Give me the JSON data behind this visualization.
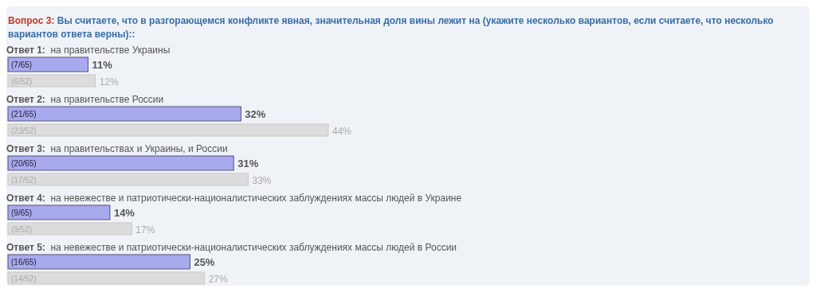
{
  "chart_data": {
    "type": "bar",
    "orientation": "horizontal",
    "title": "Вопрос 3:",
    "subtitle": "Вы считаете, что в разгорающемся конфликте явная, значительная доля вины лежит на (укажите несколько вариантов, если считаете, что несколько вариантов ответа верны)::",
    "categories": [
      "Ответ 1:  на правительстве Украины",
      "Ответ 2:  на правительстве России",
      "Ответ 3:  на правительствах и Украины, и России",
      "Ответ 4:  на невежестве и патриотически-националистических заблуждениях массы людей в Украине",
      "Ответ 5:  на невежестве и патриотически-националистических заблуждениях массы людей в России"
    ],
    "series": [
      {
        "color": "#a9a9ee",
        "values": [
          11,
          32,
          31,
          14,
          25
        ],
        "value_labels": [
          "11%",
          "32%",
          "31%",
          "14%",
          "25%"
        ]
      },
      {
        "color": "#dcdcdc",
        "values": [
          12,
          44,
          33,
          17,
          27
        ],
        "value_labels": [
          "12%",
          "44%",
          "33%",
          "17%",
          "27%"
        ]
      }
    ],
    "annotations": [
      "(7/65)",
      "(6/52)",
      "(21/65)",
      "(23/52)",
      "(20/65)",
      "(17/52)",
      "(9/65)",
      "(9/52)",
      "(16/65)",
      "(14/52)"
    ],
    "tick_labels": false
  }
}
